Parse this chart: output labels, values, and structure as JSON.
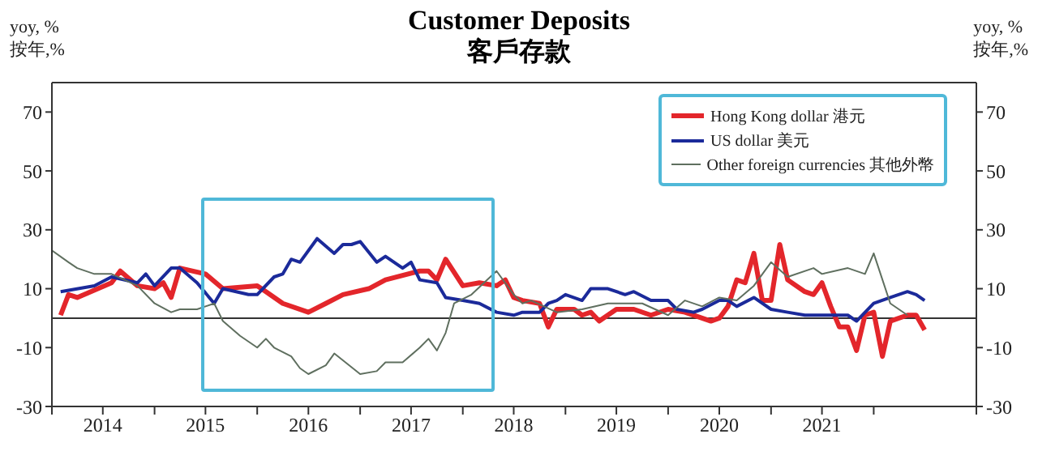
{
  "chart_data": {
    "type": "line",
    "title": "Customer Deposits",
    "subtitle": "客戶存款",
    "ylabel": "yoy, %\n按年,%",
    "y2label": "yoy, %\n按年,%",
    "xlim": [
      "2014-01",
      "2023-01"
    ],
    "xticks": [
      {
        "value": "2014-01",
        "label": null
      },
      {
        "value": "2014-07",
        "label": "2014"
      },
      {
        "value": "2015-01",
        "label": null
      },
      {
        "value": "2015-07",
        "label": "2015"
      },
      {
        "value": "2016-01",
        "label": null
      },
      {
        "value": "2016-07",
        "label": "2016"
      },
      {
        "value": "2017-01",
        "label": null
      },
      {
        "value": "2017-07",
        "label": "2017"
      },
      {
        "value": "2018-01",
        "label": null
      },
      {
        "value": "2018-07",
        "label": "2018"
      },
      {
        "value": "2019-01",
        "label": null
      },
      {
        "value": "2019-07",
        "label": "2019"
      },
      {
        "value": "2020-01",
        "label": null
      },
      {
        "value": "2020-07",
        "label": "2020"
      },
      {
        "value": "2021-01",
        "label": null
      },
      {
        "value": "2021-07",
        "label": "2021"
      },
      {
        "value": "2022-01",
        "label": null
      },
      {
        "value": "2023-01",
        "label": null
      }
    ],
    "ylim": [
      -30,
      80
    ],
    "yticks": [
      -30,
      -10,
      10,
      30,
      50,
      70
    ],
    "y2lim": [
      -30,
      80
    ],
    "y2ticks": [
      -30,
      -10,
      10,
      30,
      50,
      70
    ],
    "legend": "top right",
    "marker": "none",
    "line_style": "solid",
    "ref_lines": [
      {
        "axis": "y",
        "value": 0,
        "color": "#333333"
      }
    ],
    "series": [
      {
        "name": "Hong Kong dollar 港元",
        "color": "#e3262b",
        "x": [
          "2014-02",
          "2014-03",
          "2014-04",
          "2014-08",
          "2014-09",
          "2014-11",
          "2015-01",
          "2015-02",
          "2015-03",
          "2015-04",
          "2015-07",
          "2015-09",
          "2016-01",
          "2016-02",
          "2016-04",
          "2016-07",
          "2016-09",
          "2016-11",
          "2017-02",
          "2017-04",
          "2017-08",
          "2017-09",
          "2017-10",
          "2017-11",
          "2018-01",
          "2018-03",
          "2018-05",
          "2018-06",
          "2018-07",
          "2018-08",
          "2018-10",
          "2018-11",
          "2018-12",
          "2019-02",
          "2019-03",
          "2019-04",
          "2019-05",
          "2019-07",
          "2019-09",
          "2019-11",
          "2020-01",
          "2020-03",
          "2020-06",
          "2020-07",
          "2020-08",
          "2020-09",
          "2020-10",
          "2020-11",
          "2020-12",
          "2021-01",
          "2021-02",
          "2021-03",
          "2021-05",
          "2021-06",
          "2021-07",
          "2021-08",
          "2021-09",
          "2021-10",
          "2021-11",
          "2021-12",
          "2022-01",
          "2022-02",
          "2022-03",
          "2022-05",
          "2022-06",
          "2022-07"
        ],
        "values": [
          1,
          8,
          7,
          12,
          16,
          11,
          10,
          12,
          7,
          17,
          15,
          10,
          11,
          9,
          5,
          2,
          5,
          8,
          10,
          13,
          16,
          16,
          13,
          20,
          11,
          12,
          11,
          13,
          7,
          6,
          5,
          -3,
          3,
          3,
          1,
          2,
          -1,
          3,
          3,
          1,
          3,
          2,
          -1,
          0,
          4,
          13,
          12,
          22,
          6,
          6,
          25,
          13,
          9,
          8,
          12,
          4,
          -3,
          -3,
          -11,
          1,
          2,
          -13,
          -1,
          1,
          1,
          -4
        ]
      },
      {
        "name": "US dollar 美元",
        "color": "#1b2a9a",
        "x": [
          "2014-02",
          "2014-06",
          "2014-08",
          "2014-11",
          "2014-12",
          "2015-01",
          "2015-03",
          "2015-04",
          "2015-06",
          "2015-08",
          "2015-09",
          "2015-12",
          "2016-01",
          "2016-03",
          "2016-04",
          "2016-05",
          "2016-06",
          "2016-08",
          "2016-10",
          "2016-11",
          "2016-12",
          "2017-01",
          "2017-03",
          "2017-04",
          "2017-06",
          "2017-07",
          "2017-08",
          "2017-10",
          "2017-11",
          "2018-01",
          "2018-03",
          "2018-05",
          "2018-07",
          "2018-08",
          "2018-10",
          "2018-11",
          "2018-12",
          "2019-01",
          "2019-03",
          "2019-04",
          "2019-06",
          "2019-08",
          "2019-09",
          "2019-11",
          "2020-01",
          "2020-02",
          "2020-04",
          "2020-05",
          "2020-07",
          "2020-08",
          "2020-09",
          "2020-11",
          "2021-01",
          "2021-03",
          "2021-05",
          "2021-06",
          "2021-07",
          "2021-10",
          "2021-11",
          "2022-01",
          "2022-03",
          "2022-05",
          "2022-06",
          "2022-07"
        ],
        "values": [
          9,
          11,
          14,
          12,
          15,
          11,
          17,
          17,
          12,
          5,
          10,
          8,
          8,
          14,
          15,
          20,
          19,
          27,
          22,
          25,
          25,
          26,
          19,
          21,
          17,
          19,
          13,
          12,
          7,
          6,
          5,
          2,
          1,
          2,
          2,
          5,
          6,
          8,
          6,
          10,
          10,
          8,
          9,
          6,
          6,
          3,
          2,
          3,
          6,
          6,
          4,
          7,
          3,
          2,
          1,
          1,
          1,
          1,
          -1,
          5,
          7,
          9,
          8,
          6
        ]
      },
      {
        "name": "Other foreign currencies 其他外幣",
        "color": "#5f6f5f",
        "x": [
          "2014-01",
          "2014-03",
          "2014-04",
          "2014-06",
          "2014-08",
          "2014-11",
          "2015-01",
          "2015-03",
          "2015-04",
          "2015-06",
          "2015-08",
          "2015-09",
          "2015-11",
          "2016-01",
          "2016-02",
          "2016-03",
          "2016-05",
          "2016-06",
          "2016-07",
          "2016-09",
          "2016-10",
          "2017-01",
          "2017-03",
          "2017-04",
          "2017-06",
          "2017-08",
          "2017-09",
          "2017-10",
          "2017-11",
          "2017-12",
          "2018-02",
          "2018-05",
          "2018-07",
          "2018-08",
          "2018-09",
          "2018-12",
          "2019-03",
          "2019-06",
          "2019-10",
          "2020-01",
          "2020-03",
          "2020-05",
          "2020-07",
          "2020-09",
          "2020-11",
          "2021-01",
          "2021-03",
          "2021-06",
          "2021-07",
          "2021-10",
          "2021-12",
          "2022-01",
          "2022-03",
          "2022-05"
        ],
        "values": [
          23,
          19,
          17,
          15,
          15,
          11,
          5,
          2,
          3,
          3,
          5,
          -1,
          -6,
          -10,
          -7,
          -10,
          -13,
          -17,
          -19,
          -16,
          -12,
          -19,
          -18,
          -15,
          -15,
          -10,
          -7,
          -11,
          -5,
          5,
          8,
          16,
          8,
          5,
          6,
          2,
          3,
          5,
          5,
          1,
          6,
          4,
          7,
          6,
          11,
          19,
          14,
          17,
          15,
          17,
          15,
          22,
          5,
          1
        ]
      }
    ]
  }
}
